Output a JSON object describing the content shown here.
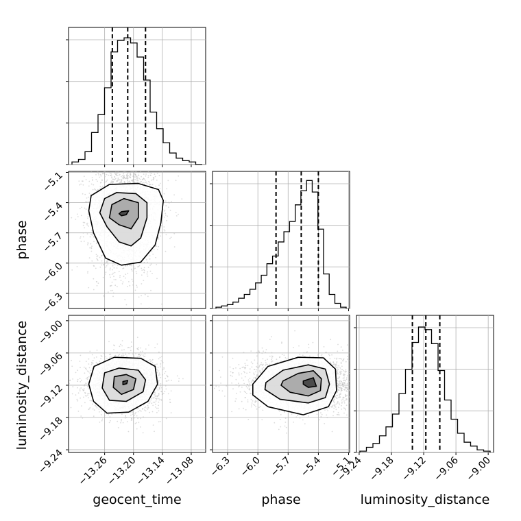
{
  "chart_data": {
    "type": "corner",
    "colors": {
      "line": "#000000",
      "grid": "#b0b0b0",
      "points": "#bdbdbd",
      "background": "#ffffff"
    },
    "parameters": [
      {
        "name": "geocent_time",
        "label": "geocent_time",
        "range": [
          -13.335,
          -13.05
        ],
        "ticks": [
          -13.26,
          -13.2,
          -13.14,
          -13.08
        ],
        "tick_labels": [
          "−13.26",
          "−13.20",
          "−13.14",
          "−13.08"
        ],
        "quantiles": [
          -13.244,
          -13.212,
          -13.175
        ]
      },
      {
        "name": "phase",
        "label": "phase",
        "range": [
          -6.45,
          -5.09
        ],
        "ticks": [
          -6.3,
          -6.0,
          -5.7,
          -5.4,
          -5.1
        ],
        "tick_labels": [
          "−6.3",
          "−6.0",
          "−5.7",
          "−5.4",
          "−5.1"
        ],
        "quantiles": [
          -5.82,
          -5.57,
          -5.4
        ]
      },
      {
        "name": "luminosity_distance",
        "label": "luminosity_distance",
        "range": [
          -9.245,
          -8.99
        ],
        "ticks": [
          -9.24,
          -9.18,
          -9.12,
          -9.06,
          -9.0
        ],
        "tick_labels": [
          "−9.24",
          "−9.18",
          "−9.12",
          "−9.06",
          "−9.00"
        ],
        "quantiles": [
          -9.141,
          -9.116,
          -9.09
        ]
      }
    ],
    "histograms": [
      {
        "param": "geocent_time",
        "y_ticks": [
          0.0,
          0.325,
          0.65,
          0.975
        ],
        "counts": [
          0.02,
          0.04,
          0.1,
          0.25,
          0.39,
          0.6,
          0.88,
          0.97,
          0.99,
          0.95,
          0.84,
          0.66,
          0.41,
          0.28,
          0.17,
          0.09,
          0.05,
          0.03,
          0.02,
          0.0
        ]
      },
      {
        "param": "phase",
        "y_ticks": [
          0.0,
          0.325,
          0.65,
          0.975
        ],
        "counts": [
          0.01,
          0.02,
          0.03,
          0.05,
          0.08,
          0.11,
          0.15,
          0.2,
          0.26,
          0.35,
          0.41,
          0.52,
          0.6,
          0.68,
          0.81,
          0.92,
          1.0,
          0.91,
          0.62,
          0.27,
          0.11,
          0.04,
          0.01
        ]
      },
      {
        "param": "luminosity_distance",
        "y_ticks": [
          0.0,
          0.325,
          0.65,
          0.975
        ],
        "counts": [
          0.01,
          0.04,
          0.07,
          0.13,
          0.2,
          0.3,
          0.46,
          0.65,
          0.86,
          0.98,
          0.96,
          0.85,
          0.64,
          0.41,
          0.26,
          0.15,
          0.08,
          0.05,
          0.02,
          0.01
        ]
      }
    ],
    "joint": [
      {
        "x": "geocent_time",
        "y": "phase",
        "center": [
          -13.218,
          -5.47
        ],
        "sigma": [
          0.037,
          0.25
        ],
        "skew_y": -1,
        "contour_levels": [
          [
            [
              -13.225,
              -5.49
            ],
            [
              -13.21,
              -5.48
            ],
            [
              -13.215,
              -5.52
            ],
            [
              -13.225,
              -5.53
            ],
            [
              -13.23,
              -5.51
            ]
          ],
          [
            [
              -13.245,
              -5.42
            ],
            [
              -13.22,
              -5.36
            ],
            [
              -13.19,
              -5.4
            ],
            [
              -13.19,
              -5.55
            ],
            [
              -13.205,
              -5.66
            ],
            [
              -13.23,
              -5.62
            ],
            [
              -13.25,
              -5.55
            ]
          ],
          [
            [
              -13.26,
              -5.36
            ],
            [
              -13.235,
              -5.3
            ],
            [
              -13.195,
              -5.31
            ],
            [
              -13.172,
              -5.4
            ],
            [
              -13.172,
              -5.55
            ],
            [
              -13.185,
              -5.75
            ],
            [
              -13.205,
              -5.83
            ],
            [
              -13.23,
              -5.79
            ],
            [
              -13.255,
              -5.64
            ],
            [
              -13.27,
              -5.5
            ]
          ],
          [
            [
              -13.288,
              -5.33
            ],
            [
              -13.25,
              -5.22
            ],
            [
              -13.19,
              -5.21
            ],
            [
              -13.148,
              -5.27
            ],
            [
              -13.138,
              -5.38
            ],
            [
              -13.143,
              -5.6
            ],
            [
              -13.155,
              -5.82
            ],
            [
              -13.185,
              -5.99
            ],
            [
              -13.225,
              -6.02
            ],
            [
              -13.258,
              -5.95
            ],
            [
              -13.283,
              -5.7
            ],
            [
              -13.293,
              -5.48
            ]
          ]
        ]
      },
      {
        "x": "geocent_time",
        "y": "luminosity_distance",
        "center": [
          -13.218,
          -9.117
        ],
        "sigma": [
          0.037,
          0.026
        ],
        "skew_y": 0,
        "contour_levels": [
          [
            [
              -13.222,
              -9.113
            ],
            [
              -13.212,
              -9.111
            ],
            [
              -13.214,
              -9.117
            ],
            [
              -13.222,
              -9.119
            ]
          ],
          [
            [
              -13.24,
              -9.104
            ],
            [
              -13.215,
              -9.1
            ],
            [
              -13.195,
              -9.108
            ],
            [
              -13.2,
              -9.128
            ],
            [
              -13.225,
              -9.137
            ],
            [
              -13.242,
              -9.124
            ]
          ],
          [
            [
              -13.26,
              -9.097
            ],
            [
              -13.23,
              -9.088
            ],
            [
              -13.19,
              -9.092
            ],
            [
              -13.175,
              -9.11
            ],
            [
              -13.18,
              -9.132
            ],
            [
              -13.215,
              -9.15
            ],
            [
              -13.25,
              -9.148
            ],
            [
              -13.265,
              -9.125
            ]
          ],
          [
            [
              -13.282,
              -9.085
            ],
            [
              -13.24,
              -9.068
            ],
            [
              -13.185,
              -9.07
            ],
            [
              -13.155,
              -9.085
            ],
            [
              -13.15,
              -9.118
            ],
            [
              -13.17,
              -9.15
            ],
            [
              -13.21,
              -9.17
            ],
            [
              -13.255,
              -9.172
            ],
            [
              -13.283,
              -9.15
            ],
            [
              -13.293,
              -9.118
            ]
          ]
        ]
      },
      {
        "x": "phase",
        "y": "luminosity_distance",
        "center": [
          -5.5,
          -9.117
        ],
        "sigma": [
          0.24,
          0.026
        ],
        "skew_x": -1,
        "contour_levels": [
          [
            [
              -5.55,
              -9.112
            ],
            [
              -5.45,
              -9.106
            ],
            [
              -5.42,
              -9.122
            ],
            [
              -5.5,
              -9.124
            ],
            [
              -5.55,
              -9.118
            ]
          ],
          [
            [
              -5.75,
              -9.112
            ],
            [
              -5.6,
              -9.098
            ],
            [
              -5.45,
              -9.093
            ],
            [
              -5.37,
              -9.108
            ],
            [
              -5.38,
              -9.13
            ],
            [
              -5.5,
              -9.14
            ],
            [
              -5.68,
              -9.133
            ],
            [
              -5.77,
              -9.12
            ]
          ],
          [
            [
              -5.92,
              -9.115
            ],
            [
              -5.75,
              -9.092
            ],
            [
              -5.5,
              -9.082
            ],
            [
              -5.33,
              -9.09
            ],
            [
              -5.29,
              -9.118
            ],
            [
              -5.33,
              -9.143
            ],
            [
              -5.5,
              -9.153
            ],
            [
              -5.78,
              -9.146
            ],
            [
              -5.93,
              -9.128
            ]
          ],
          [
            [
              -6.05,
              -9.118
            ],
            [
              -5.9,
              -9.085
            ],
            [
              -5.6,
              -9.068
            ],
            [
              -5.35,
              -9.069
            ],
            [
              -5.23,
              -9.09
            ],
            [
              -5.22,
              -9.13
            ],
            [
              -5.3,
              -9.16
            ],
            [
              -5.55,
              -9.175
            ],
            [
              -5.9,
              -9.16
            ],
            [
              -6.05,
              -9.138
            ]
          ]
        ]
      }
    ]
  }
}
